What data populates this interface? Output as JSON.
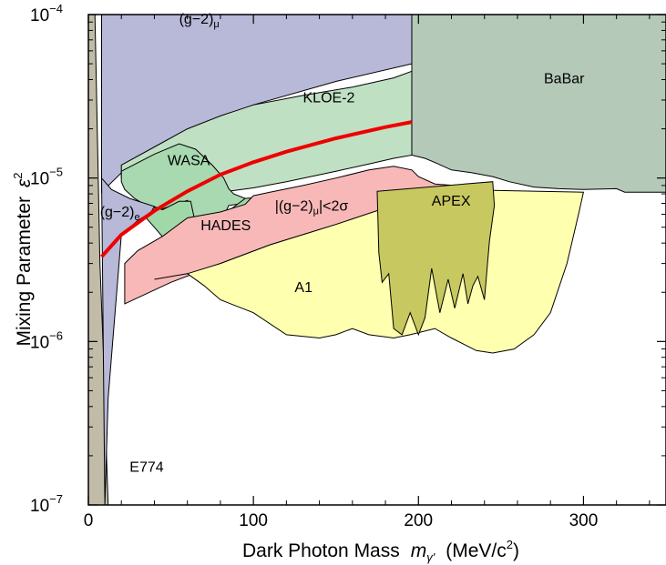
{
  "chart_data": {
    "type": "area",
    "xlabel": "Dark Photon Mass",
    "xlabel_symbol": "m",
    "xlabel_sub": "γ'",
    "xlabel_unit": "(MeV/c",
    "xlabel_unit_sup": "2",
    "xlabel_unit_close": ")",
    "ylabel": "Mixing Parameter",
    "ylabel_symbol": "ε",
    "ylabel_sup": "2",
    "xlim": [
      0,
      350
    ],
    "ylim": [
      1e-07,
      0.0001
    ],
    "yscale": "log",
    "x_ticks": [
      0,
      100,
      200,
      300
    ],
    "y_ticks": [
      {
        "value": 1e-07,
        "base": "10",
        "exp": "−7"
      },
      {
        "value": 1e-06,
        "base": "10",
        "exp": "−6"
      },
      {
        "value": 1e-05,
        "base": "10",
        "exp": "−5"
      },
      {
        "value": 0.0001,
        "base": "10",
        "exp": "−4"
      }
    ],
    "grid": false,
    "colors": {
      "gm2mu": "#b8b8d8",
      "babar": "#b5c9b8",
      "kloe": "#c0e0c3",
      "wasa": "#a8d9b0",
      "hades": "#a0d8a8",
      "band": "#f8b8b8",
      "a1": "#ffffb0",
      "apex": "#c8c860",
      "e774": "#c0bca8",
      "red_line": "#ee0000"
    },
    "regions": [
      {
        "name": "(g−2)μ",
        "label": "(g−2)",
        "label_sub": "μ",
        "polygon": [
          [
            8,
            8.2e-06
          ],
          [
            30,
            1.35e-05
          ],
          [
            60,
            1.95e-05
          ],
          [
            100,
            2.8e-05
          ],
          [
            150,
            3.9e-05
          ],
          [
            196,
            5e-05
          ],
          [
            196,
            0.0001
          ],
          [
            8,
            0.0001
          ],
          [
            8,
            8.2e-06
          ]
        ]
      },
      {
        "name": "BaBar",
        "label": "BaBar",
        "polygon": [
          [
            196,
            0.0001
          ],
          [
            350,
            0.0001
          ],
          [
            350,
            8.2e-06
          ],
          [
            325,
            8.2e-06
          ],
          [
            320,
            8.6e-06
          ],
          [
            300,
            8.5e-06
          ],
          [
            285,
            8.6e-06
          ],
          [
            270,
            8.8e-06
          ],
          [
            255,
            9.5e-06
          ],
          [
            245,
            1.02e-05
          ],
          [
            232,
            1.08e-05
          ],
          [
            220,
            1.12e-05
          ],
          [
            212,
            1.22e-05
          ],
          [
            204,
            1.32e-05
          ],
          [
            196,
            1.38e-05
          ],
          [
            196,
            0.0001
          ]
        ]
      },
      {
        "name": "KLOE-2",
        "label": "KLOE-2",
        "polygon": [
          [
            20,
            1.2e-05
          ],
          [
            40,
            1.55e-05
          ],
          [
            60,
            2e-05
          ],
          [
            80,
            2.4e-05
          ],
          [
            100,
            2.8e-05
          ],
          [
            130,
            3.2e-05
          ],
          [
            160,
            3.6e-05
          ],
          [
            185,
            4.1e-05
          ],
          [
            196,
            4.5e-05
          ],
          [
            196,
            1.38e-05
          ],
          [
            185,
            1.32e-05
          ],
          [
            170,
            1.22e-05
          ],
          [
            150,
            1.1e-05
          ],
          [
            120,
            9.5e-06
          ],
          [
            100,
            8.7e-06
          ],
          [
            85,
            8.3e-06
          ],
          [
            60,
            7.5e-06
          ],
          [
            40,
            8.5e-06
          ],
          [
            20,
            1e-05
          ],
          [
            20,
            1.2e-05
          ]
        ]
      },
      {
        "name": "WASA",
        "label": "WASA",
        "polygon": [
          [
            20,
            1.1e-05
          ],
          [
            40,
            1.4e-05
          ],
          [
            55,
            1.62e-05
          ],
          [
            65,
            1.5e-05
          ],
          [
            75,
            1.2e-05
          ],
          [
            82,
            1e-05
          ],
          [
            85,
            8.6e-06
          ],
          [
            88,
            8e-06
          ],
          [
            95,
            7.5e-06
          ],
          [
            100,
            7.5e-06
          ],
          [
            95,
            7e-06
          ],
          [
            85,
            6.8e-06
          ],
          [
            82,
            5.8e-06
          ],
          [
            70,
            5.6e-06
          ],
          [
            63,
            5.7e-06
          ],
          [
            62,
            6.7e-06
          ],
          [
            60,
            7.3e-06
          ],
          [
            55,
            7e-06
          ],
          [
            45,
            6.5e-06
          ],
          [
            35,
            6.8e-06
          ],
          [
            28,
            7.5e-06
          ],
          [
            22,
            8.5e-06
          ],
          [
            20,
            9.5e-06
          ],
          [
            20,
            1.1e-05
          ]
        ]
      },
      {
        "name": "HADES",
        "label": "HADES",
        "polygon": [
          [
            30,
            7e-06
          ],
          [
            45,
            6.4e-06
          ],
          [
            55,
            7.2e-06
          ],
          [
            62,
            7.2e-06
          ],
          [
            64,
            5.8e-06
          ],
          [
            80,
            5.6e-06
          ],
          [
            85,
            6.3e-06
          ],
          [
            95,
            7.5e-06
          ],
          [
            108,
            7.7e-06
          ],
          [
            100,
            5.5e-06
          ],
          [
            90,
            4.5e-06
          ],
          [
            80,
            4e-06
          ],
          [
            70,
            3.6e-06
          ],
          [
            60,
            3.5e-06
          ],
          [
            50,
            3.8e-06
          ],
          [
            40,
            5e-06
          ],
          [
            33,
            6e-06
          ],
          [
            30,
            7e-06
          ]
        ]
      },
      {
        "name": "|(g−2)μ|<2σ",
        "label": "|(g−2)",
        "label_sub": "μ",
        "label_tail": "|<2σ",
        "polygon": [
          [
            22,
            1.7e-06
          ],
          [
            50,
            2.3e-06
          ],
          [
            80,
            3e-06
          ],
          [
            110,
            3.9e-06
          ],
          [
            150,
            5.2e-06
          ],
          [
            180,
            6.5e-06
          ],
          [
            200,
            7.4e-06
          ],
          [
            215,
            8.5e-06
          ],
          [
            222,
            9e-06
          ],
          [
            210,
            9.2e-06
          ],
          [
            200,
            1.02e-05
          ],
          [
            196,
            1.12e-05
          ],
          [
            185,
            1.18e-05
          ],
          [
            170,
            1.12e-05
          ],
          [
            150,
            1e-05
          ],
          [
            130,
            9e-06
          ],
          [
            110,
            8.2e-06
          ],
          [
            100,
            7.8e-06
          ],
          [
            95,
            6.9e-06
          ],
          [
            80,
            6.2e-06
          ],
          [
            60,
            5.7e-06
          ],
          [
            45,
            4.4e-06
          ],
          [
            30,
            3.6e-06
          ],
          [
            22,
            3e-06
          ],
          [
            22,
            1.7e-06
          ]
        ]
      },
      {
        "name": "A1",
        "label": "A1",
        "polygon": [
          [
            40,
            2.4e-06
          ],
          [
            60,
            2.6e-06
          ],
          [
            70,
            2.2e-06
          ],
          [
            80,
            1.8e-06
          ],
          [
            100,
            1.5e-06
          ],
          [
            120,
            1.1e-06
          ],
          [
            140,
            1.05e-06
          ],
          [
            150,
            1.1e-06
          ],
          [
            160,
            1.2e-06
          ],
          [
            170,
            1.1e-06
          ],
          [
            185,
            1.05e-06
          ],
          [
            195,
            1.1e-06
          ],
          [
            210,
            1.2e-06
          ],
          [
            220,
            1.05e-06
          ],
          [
            235,
            8.8e-07
          ],
          [
            245,
            8.5e-07
          ],
          [
            258,
            9e-07
          ],
          [
            270,
            1.1e-06
          ],
          [
            280,
            1.5e-06
          ],
          [
            290,
            3e-06
          ],
          [
            297,
            6e-06
          ],
          [
            300,
            8.2e-06
          ],
          [
            245,
            8.4e-06
          ],
          [
            215,
            8.5e-06
          ],
          [
            190,
            7.1e-06
          ],
          [
            150,
            5.2e-06
          ],
          [
            110,
            3.9e-06
          ],
          [
            80,
            3e-06
          ],
          [
            60,
            2.6e-06
          ],
          [
            40,
            2.4e-06
          ]
        ]
      },
      {
        "name": "APEX",
        "label": "APEX",
        "polygon": [
          [
            175,
            8.3e-06
          ],
          [
            245,
            9.5e-06
          ],
          [
            246,
            6.8e-06
          ],
          [
            243,
            4.1e-06
          ],
          [
            240,
            1.8e-06
          ],
          [
            236,
            2.5e-06
          ],
          [
            233,
            2.2e-06
          ],
          [
            230,
            1.7e-06
          ],
          [
            227,
            2.6e-06
          ],
          [
            222,
            1.6e-06
          ],
          [
            218,
            2.4e-06
          ],
          [
            213,
            1.5e-06
          ],
          [
            208,
            2.8e-06
          ],
          [
            204,
            1.4e-06
          ],
          [
            200,
            1.1e-06
          ],
          [
            195,
            1.5e-06
          ],
          [
            190,
            1.1e-06
          ],
          [
            185,
            1.2e-06
          ],
          [
            182,
            2.6e-06
          ],
          [
            178,
            2.3e-06
          ],
          [
            176,
            3.5e-06
          ],
          [
            175,
            8.3e-06
          ]
        ]
      },
      {
        "name": "E774",
        "label": "E774",
        "polygon": [
          [
            0,
            1e-07
          ],
          [
            0,
            0.0001
          ],
          [
            4,
            0.0001
          ],
          [
            5,
            3e-05
          ],
          [
            7,
            3e-06
          ],
          [
            10,
            5e-07
          ],
          [
            11,
            2e-07
          ],
          [
            12,
            1e-07
          ],
          [
            0,
            1e-07
          ]
        ]
      },
      {
        "name": "(g−2)e",
        "label": "(g−2)",
        "label_sub": "e",
        "polygon": [
          [
            10,
            1e-07
          ],
          [
            8,
            1e-05
          ],
          [
            14,
            8.5e-06
          ],
          [
            25,
            7.5e-06
          ],
          [
            40,
            6.7e-06
          ],
          [
            38,
            6.2e-06
          ],
          [
            30,
            5.5e-06
          ],
          [
            20,
            4.5e-06
          ],
          [
            12,
            4.5e-07
          ],
          [
            10,
            1e-07
          ]
        ]
      }
    ],
    "series": [
      {
        "name": "",
        "type": "line",
        "color": "#ee0000",
        "x": [
          8,
          20,
          40,
          60,
          80,
          100,
          120,
          150,
          180,
          196
        ],
        "y": [
          3.3e-06,
          4.5e-06,
          6.3e-06,
          8.3e-06,
          1.05e-05,
          1.25e-05,
          1.45e-05,
          1.75e-05,
          2.05e-05,
          2.2e-05
        ]
      }
    ]
  }
}
